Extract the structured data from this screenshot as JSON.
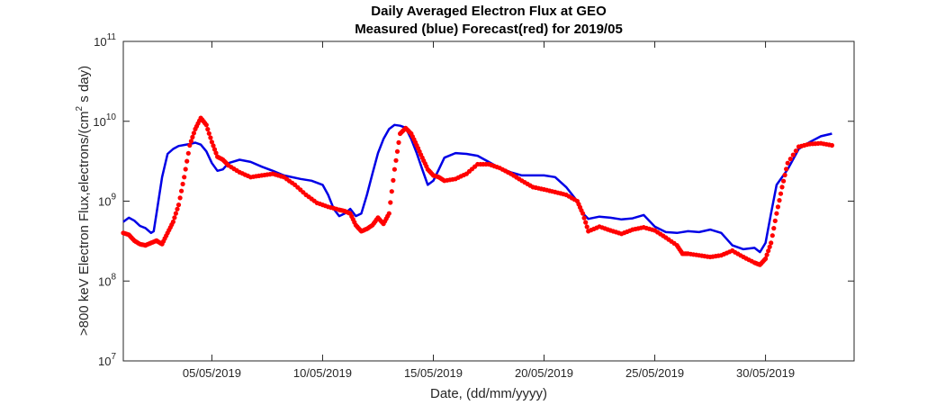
{
  "chart_data": {
    "type": "line",
    "title": "Daily Averaged Electron Flux at GEO",
    "subtitle": "Measured (blue) Forecast(red) for 2019/05",
    "xlabel": "Date, (dd/mm/yyyy)",
    "ylabel": ">800 keV Electron Flux,electrons/(cm² s day)",
    "y_scale": "log",
    "xlim": [
      "2019-05-01",
      "2019-06-03"
    ],
    "ylim": [
      10000000,
      100000000000
    ],
    "x_tick_labels": [
      "05/05/2019",
      "10/05/2019",
      "15/05/2019",
      "20/05/2019",
      "25/05/2019",
      "30/05/2019"
    ],
    "y_tick_labels": [
      {
        "base": "10",
        "exp": "7"
      },
      {
        "base": "10",
        "exp": "8"
      },
      {
        "base": "10",
        "exp": "9"
      },
      {
        "base": "10",
        "exp": "10"
      },
      {
        "base": "10",
        "exp": "11"
      }
    ],
    "grid": false,
    "series": [
      {
        "name": "Measured",
        "color": "#0000e6",
        "style": "line",
        "points": [
          [
            "2019-05-01 00:00",
            550000000
          ],
          [
            "2019-05-01 06:00",
            620000000
          ],
          [
            "2019-05-01 12:00",
            570000000
          ],
          [
            "2019-05-01 18:00",
            490000000
          ],
          [
            "2019-05-02 00:00",
            460000000
          ],
          [
            "2019-05-02 06:00",
            400000000
          ],
          [
            "2019-05-02 09:00",
            420000000
          ],
          [
            "2019-05-02 12:00",
            700000000
          ],
          [
            "2019-05-02 18:00",
            2000000000
          ],
          [
            "2019-05-03 00:00",
            3900000000
          ],
          [
            "2019-05-03 06:00",
            4500000000
          ],
          [
            "2019-05-03 12:00",
            4900000000
          ],
          [
            "2019-05-04 00:00",
            5200000000
          ],
          [
            "2019-05-04 06:00",
            5400000000
          ],
          [
            "2019-05-04 12:00",
            5100000000
          ],
          [
            "2019-05-04 18:00",
            4200000000
          ],
          [
            "2019-05-05 00:00",
            3000000000
          ],
          [
            "2019-05-05 06:00",
            2400000000
          ],
          [
            "2019-05-05 12:00",
            2500000000
          ],
          [
            "2019-05-05 18:00",
            3000000000
          ],
          [
            "2019-05-06 06:00",
            3300000000
          ],
          [
            "2019-05-06 18:00",
            3100000000
          ],
          [
            "2019-05-07 06:00",
            2700000000
          ],
          [
            "2019-05-07 18:00",
            2400000000
          ],
          [
            "2019-05-08 06:00",
            2100000000
          ],
          [
            "2019-05-09 00:00",
            1900000000
          ],
          [
            "2019-05-09 12:00",
            1800000000
          ],
          [
            "2019-05-10 00:00",
            1600000000
          ],
          [
            "2019-05-10 06:00",
            1200000000
          ],
          [
            "2019-05-10 12:00",
            800000000
          ],
          [
            "2019-05-10 18:00",
            650000000
          ],
          [
            "2019-05-11 00:00",
            700000000
          ],
          [
            "2019-05-11 06:00",
            800000000
          ],
          [
            "2019-05-11 12:00",
            650000000
          ],
          [
            "2019-05-11 18:00",
            700000000
          ],
          [
            "2019-05-12 00:00",
            1200000000
          ],
          [
            "2019-05-12 06:00",
            2200000000
          ],
          [
            "2019-05-12 12:00",
            4000000000
          ],
          [
            "2019-05-12 18:00",
            6000000000
          ],
          [
            "2019-05-13 00:00",
            8000000000
          ],
          [
            "2019-05-13 06:00",
            9000000000
          ],
          [
            "2019-05-13 12:00",
            8800000000
          ],
          [
            "2019-05-13 18:00",
            8300000000
          ],
          [
            "2019-05-14 00:00",
            6000000000
          ],
          [
            "2019-05-14 06:00",
            4000000000
          ],
          [
            "2019-05-14 12:00",
            2500000000
          ],
          [
            "2019-05-14 18:00",
            1600000000
          ],
          [
            "2019-05-15 00:00",
            1800000000
          ],
          [
            "2019-05-15 06:00",
            2500000000
          ],
          [
            "2019-05-15 12:00",
            3500000000
          ],
          [
            "2019-05-16 00:00",
            4000000000
          ],
          [
            "2019-05-16 12:00",
            3900000000
          ],
          [
            "2019-05-17 00:00",
            3700000000
          ],
          [
            "2019-05-17 12:00",
            3100000000
          ],
          [
            "2019-05-18 00:00",
            2600000000
          ],
          [
            "2019-05-18 12:00",
            2300000000
          ],
          [
            "2019-05-19 00:00",
            2100000000
          ],
          [
            "2019-05-19 12:00",
            2100000000
          ],
          [
            "2019-05-20 00:00",
            2100000000
          ],
          [
            "2019-05-20 12:00",
            2000000000
          ],
          [
            "2019-05-21 00:00",
            1500000000
          ],
          [
            "2019-05-21 12:00",
            1000000000
          ],
          [
            "2019-05-21 18:00",
            700000000
          ],
          [
            "2019-05-22 00:00",
            600000000
          ],
          [
            "2019-05-22 12:00",
            640000000
          ],
          [
            "2019-05-23 00:00",
            620000000
          ],
          [
            "2019-05-23 12:00",
            590000000
          ],
          [
            "2019-05-24 00:00",
            610000000
          ],
          [
            "2019-05-24 12:00",
            670000000
          ],
          [
            "2019-05-25 00:00",
            480000000
          ],
          [
            "2019-05-25 12:00",
            410000000
          ],
          [
            "2019-05-26 00:00",
            400000000
          ],
          [
            "2019-05-26 12:00",
            420000000
          ],
          [
            "2019-05-27 00:00",
            410000000
          ],
          [
            "2019-05-27 12:00",
            440000000
          ],
          [
            "2019-05-28 00:00",
            400000000
          ],
          [
            "2019-05-28 12:00",
            280000000
          ],
          [
            "2019-05-29 00:00",
            250000000
          ],
          [
            "2019-05-29 12:00",
            260000000
          ],
          [
            "2019-05-29 18:00",
            230000000
          ],
          [
            "2019-05-30 00:00",
            300000000
          ],
          [
            "2019-05-30 06:00",
            700000000
          ],
          [
            "2019-05-30 12:00",
            1600000000
          ],
          [
            "2019-05-31 00:00",
            2500000000
          ],
          [
            "2019-05-31 12:00",
            4500000000
          ],
          [
            "2019-06-01 00:00",
            5500000000
          ],
          [
            "2019-06-01 12:00",
            6500000000
          ],
          [
            "2019-06-02 00:00",
            7000000000
          ]
        ]
      },
      {
        "name": "Forecast",
        "color": "#ff0000",
        "style": "dots",
        "points": [
          [
            "2019-05-01 00:00",
            400000000
          ],
          [
            "2019-05-01 06:00",
            380000000
          ],
          [
            "2019-05-01 12:00",
            320000000
          ],
          [
            "2019-05-01 18:00",
            290000000
          ],
          [
            "2019-05-02 00:00",
            280000000
          ],
          [
            "2019-05-02 06:00",
            300000000
          ],
          [
            "2019-05-02 12:00",
            320000000
          ],
          [
            "2019-05-02 18:00",
            290000000
          ],
          [
            "2019-05-03 00:00",
            400000000
          ],
          [
            "2019-05-03 06:00",
            550000000
          ],
          [
            "2019-05-03 12:00",
            900000000
          ],
          [
            "2019-05-03 18:00",
            2000000000
          ],
          [
            "2019-05-04 00:00",
            5000000000
          ],
          [
            "2019-05-04 06:00",
            8000000000
          ],
          [
            "2019-05-04 12:00",
            11000000000
          ],
          [
            "2019-05-04 18:00",
            9000000000
          ],
          [
            "2019-05-05 00:00",
            5500000000
          ],
          [
            "2019-05-05 06:00",
            3600000000
          ],
          [
            "2019-05-05 12:00",
            3300000000
          ],
          [
            "2019-05-05 18:00",
            2800000000
          ],
          [
            "2019-05-06 06:00",
            2300000000
          ],
          [
            "2019-05-06 18:00",
            2000000000
          ],
          [
            "2019-05-07 06:00",
            2100000000
          ],
          [
            "2019-05-07 18:00",
            2200000000
          ],
          [
            "2019-05-08 06:00",
            2000000000
          ],
          [
            "2019-05-08 18:00",
            1600000000
          ],
          [
            "2019-05-09 06:00",
            1200000000
          ],
          [
            "2019-05-09 18:00",
            950000000
          ],
          [
            "2019-05-10 06:00",
            850000000
          ],
          [
            "2019-05-10 18:00",
            780000000
          ],
          [
            "2019-05-11 00:00",
            750000000
          ],
          [
            "2019-05-11 06:00",
            700000000
          ],
          [
            "2019-05-11 12:00",
            500000000
          ],
          [
            "2019-05-11 18:00",
            420000000
          ],
          [
            "2019-05-12 00:00",
            450000000
          ],
          [
            "2019-05-12 06:00",
            500000000
          ],
          [
            "2019-05-12 12:00",
            620000000
          ],
          [
            "2019-05-12 18:00",
            520000000
          ],
          [
            "2019-05-13 00:00",
            700000000
          ],
          [
            "2019-05-13 06:00",
            2500000000
          ],
          [
            "2019-05-13 12:00",
            7000000000
          ],
          [
            "2019-05-13 18:00",
            8200000000
          ],
          [
            "2019-05-14 00:00",
            7000000000
          ],
          [
            "2019-05-14 06:00",
            5000000000
          ],
          [
            "2019-05-14 12:00",
            3500000000
          ],
          [
            "2019-05-14 18:00",
            2500000000
          ],
          [
            "2019-05-15 00:00",
            2100000000
          ],
          [
            "2019-05-15 06:00",
            2000000000
          ],
          [
            "2019-05-15 12:00",
            1800000000
          ],
          [
            "2019-05-16 00:00",
            1900000000
          ],
          [
            "2019-05-16 12:00",
            2200000000
          ],
          [
            "2019-05-17 00:00",
            2900000000
          ],
          [
            "2019-05-17 12:00",
            2900000000
          ],
          [
            "2019-05-18 00:00",
            2600000000
          ],
          [
            "2019-05-18 12:00",
            2200000000
          ],
          [
            "2019-05-19 00:00",
            1800000000
          ],
          [
            "2019-05-19 12:00",
            1500000000
          ],
          [
            "2019-05-20 00:00",
            1400000000
          ],
          [
            "2019-05-20 12:00",
            1300000000
          ],
          [
            "2019-05-21 00:00",
            1200000000
          ],
          [
            "2019-05-21 12:00",
            1000000000
          ],
          [
            "2019-05-21 18:00",
            700000000
          ],
          [
            "2019-05-22 00:00",
            420000000
          ],
          [
            "2019-05-22 12:00",
            480000000
          ],
          [
            "2019-05-23 00:00",
            430000000
          ],
          [
            "2019-05-23 12:00",
            390000000
          ],
          [
            "2019-05-24 00:00",
            440000000
          ],
          [
            "2019-05-24 12:00",
            470000000
          ],
          [
            "2019-05-25 00:00",
            430000000
          ],
          [
            "2019-05-25 12:00",
            350000000
          ],
          [
            "2019-05-26 00:00",
            280000000
          ],
          [
            "2019-05-26 06:00",
            220000000
          ],
          [
            "2019-05-26 12:00",
            220000000
          ],
          [
            "2019-05-27 00:00",
            210000000
          ],
          [
            "2019-05-27 12:00",
            200000000
          ],
          [
            "2019-05-28 00:00",
            210000000
          ],
          [
            "2019-05-28 12:00",
            240000000
          ],
          [
            "2019-05-29 00:00",
            200000000
          ],
          [
            "2019-05-29 12:00",
            170000000
          ],
          [
            "2019-05-29 18:00",
            160000000
          ],
          [
            "2019-05-30 00:00",
            190000000
          ],
          [
            "2019-05-30 06:00",
            300000000
          ],
          [
            "2019-05-30 12:00",
            700000000
          ],
          [
            "2019-05-30 18:00",
            1500000000
          ],
          [
            "2019-05-31 00:00",
            3000000000
          ],
          [
            "2019-05-31 12:00",
            4800000000
          ],
          [
            "2019-06-01 00:00",
            5200000000
          ],
          [
            "2019-06-01 12:00",
            5300000000
          ],
          [
            "2019-06-02 00:00",
            5000000000
          ]
        ]
      }
    ]
  }
}
